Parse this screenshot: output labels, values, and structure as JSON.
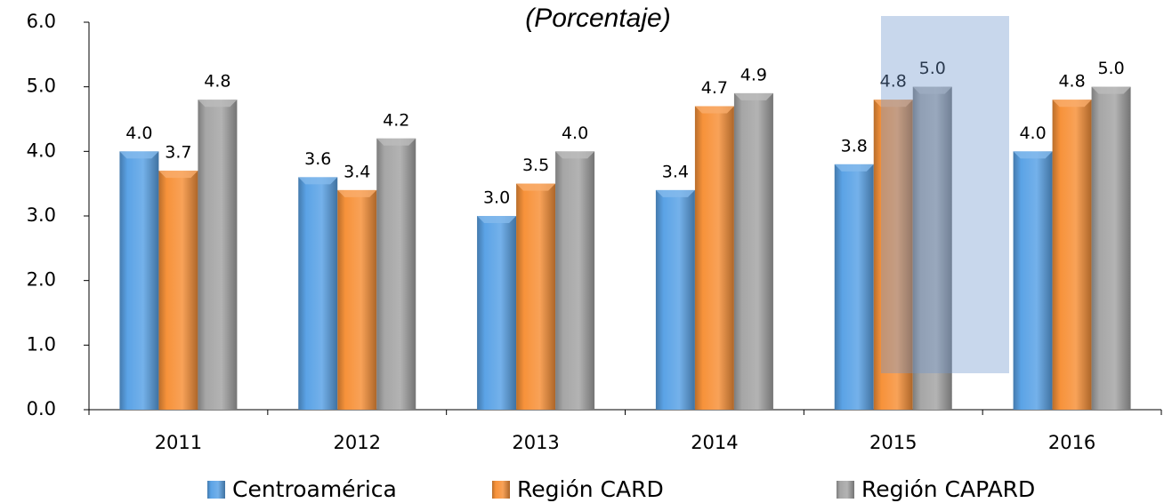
{
  "chart_data": {
    "type": "bar",
    "subtitle": "(Porcentaje)",
    "categories": [
      "2011",
      "2012",
      "2013",
      "2014",
      "2015",
      "2016"
    ],
    "series": [
      {
        "name": "Centroamérica",
        "color": "#5ba3e6",
        "values": [
          4.0,
          3.6,
          3.0,
          3.4,
          3.8,
          4.0
        ],
        "value_labels": [
          "4.0",
          "3.6",
          "3.0",
          "3.4",
          "3.8",
          "4.0"
        ]
      },
      {
        "name": "Región CARD",
        "color": "#f7923a",
        "values": [
          3.7,
          3.4,
          3.5,
          4.7,
          4.8,
          4.8
        ],
        "value_labels": [
          "3.7",
          "3.4",
          "3.5",
          "4.7",
          "4.8",
          "4.8"
        ]
      },
      {
        "name": "Región CAPARD",
        "color": "#a6a6a6",
        "values": [
          4.8,
          4.2,
          4.0,
          4.9,
          5.0,
          5.0
        ],
        "value_labels": [
          "4.8",
          "4.2",
          "4.0",
          "4.9",
          "5.0",
          "5.0"
        ]
      }
    ],
    "ylim": [
      0,
      6
    ],
    "yticks": [
      {
        "value": 0,
        "label": "0.0"
      },
      {
        "value": 1,
        "label": "1.0"
      },
      {
        "value": 2,
        "label": "2.0"
      },
      {
        "value": 3,
        "label": "3.0"
      },
      {
        "value": 4,
        "label": "4.0"
      },
      {
        "value": 5,
        "label": "5.0"
      },
      {
        "value": 6,
        "label": "6.0"
      }
    ],
    "legend": "bottom"
  }
}
